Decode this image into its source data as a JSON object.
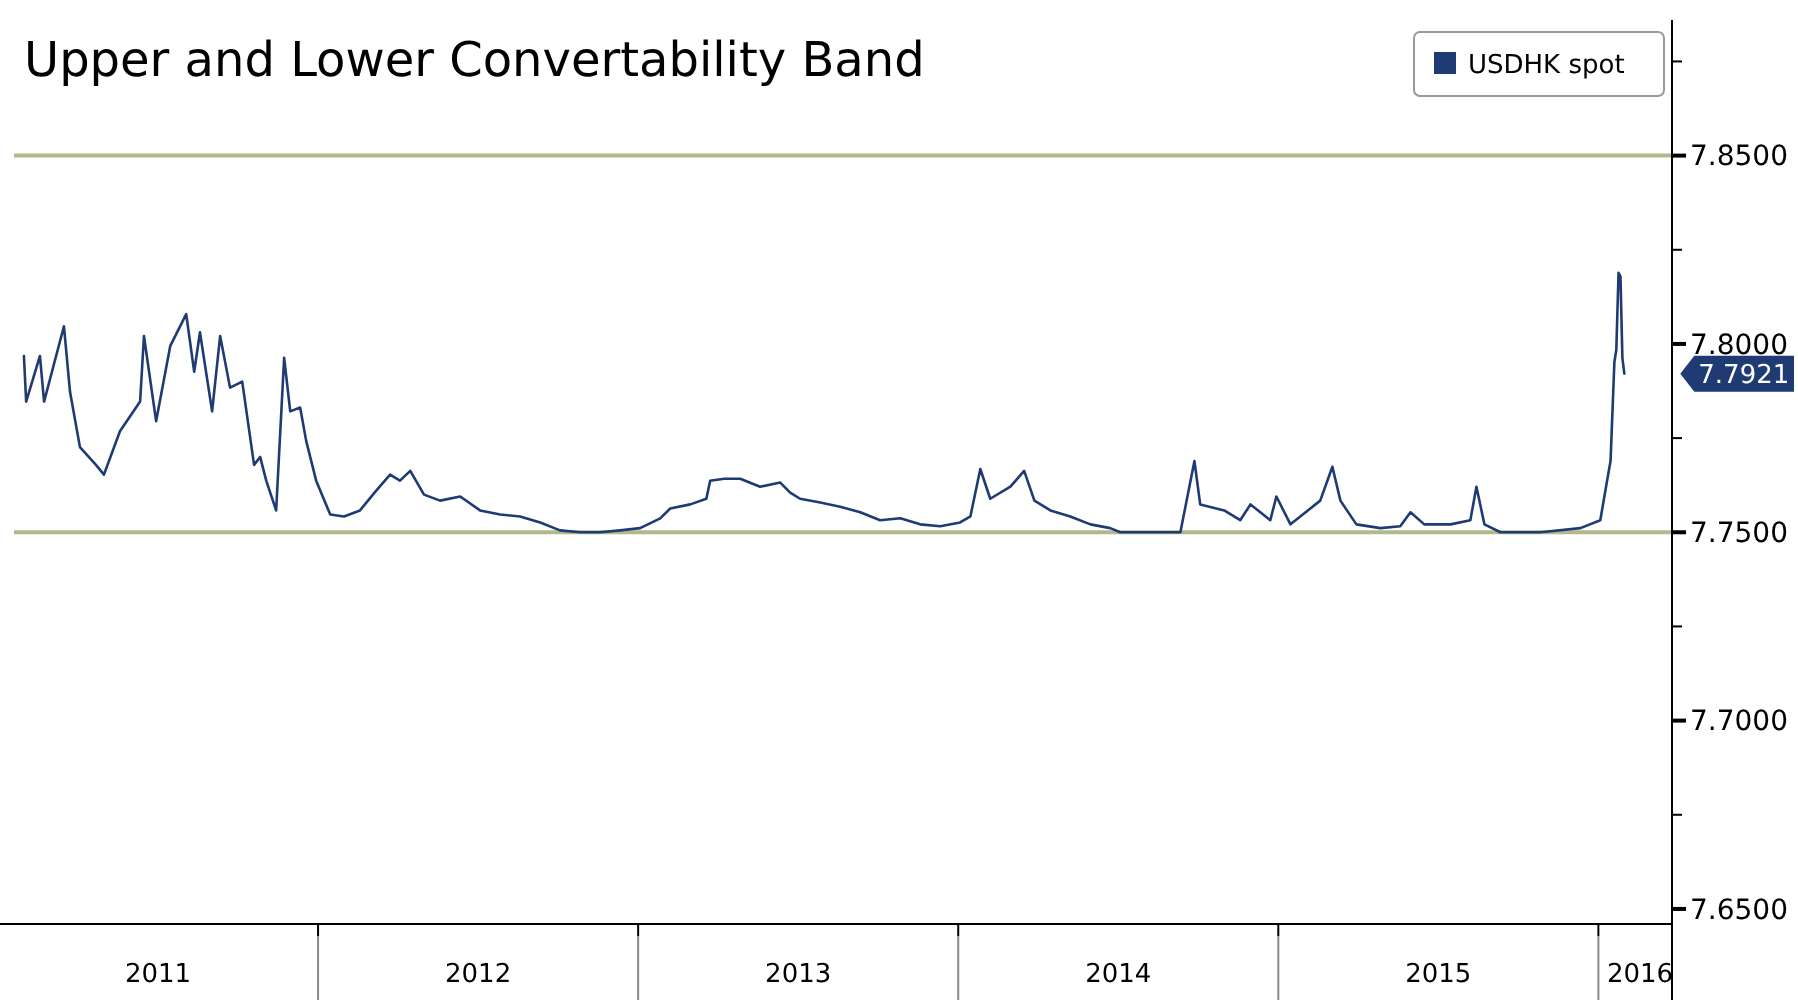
{
  "chart_data": {
    "type": "line",
    "title": "Upper and Lower Convertability Band",
    "x": [
      2011.081,
      2011.088,
      2011.131,
      2011.144,
      2011.206,
      2011.225,
      2011.256,
      2011.306,
      2011.331,
      2011.381,
      2011.444,
      2011.456,
      2011.494,
      2011.538,
      2011.588,
      2011.613,
      2011.631,
      2011.669,
      2011.694,
      2011.725,
      2011.763,
      2011.8,
      2011.819,
      2011.838,
      2011.869,
      2011.894,
      2011.913,
      2011.944,
      2011.963,
      2011.994,
      2012.038,
      2012.081,
      2012.131,
      2012.181,
      2012.225,
      2012.256,
      2012.288,
      2012.331,
      2012.381,
      2012.444,
      2012.506,
      2012.569,
      2012.631,
      2012.694,
      2012.756,
      2012.819,
      2012.85,
      2012.881,
      2012.944,
      2013.006,
      2013.069,
      2013.1,
      2013.163,
      2013.213,
      2013.225,
      2013.269,
      2013.319,
      2013.381,
      2013.444,
      2013.475,
      2013.506,
      2013.569,
      2013.631,
      2013.694,
      2013.756,
      2013.819,
      2013.881,
      2013.944,
      2014.006,
      2014.038,
      2014.069,
      2014.1,
      2014.163,
      2014.206,
      2014.238,
      2014.288,
      2014.35,
      2014.413,
      2014.475,
      2014.506,
      2014.569,
      2014.694,
      2014.738,
      2014.756,
      2014.831,
      2014.881,
      2014.913,
      2014.975,
      2014.994,
      2015.038,
      2015.131,
      2015.169,
      2015.194,
      2015.244,
      2015.319,
      2015.381,
      2015.413,
      2015.456,
      2015.538,
      2015.6,
      2015.619,
      2015.644,
      2015.694,
      2015.819,
      2015.944,
      2016.006,
      2016.025,
      2016.038,
      2016.05,
      2016.056,
      2016.063,
      2016.069,
      2016.075,
      2016.081
    ],
    "series": [
      {
        "name": "USDHK spot",
        "color": "#1f3b73",
        "values": [
          7.7968,
          7.7847,
          7.7968,
          7.7847,
          7.8047,
          7.7873,
          7.7726,
          7.7679,
          7.7653,
          7.7768,
          7.7847,
          7.8021,
          7.7795,
          7.7994,
          7.8079,
          7.7926,
          7.8031,
          7.7821,
          7.8021,
          7.7884,
          7.79,
          7.7679,
          7.77,
          7.7637,
          7.7558,
          7.7963,
          7.7821,
          7.7831,
          7.7742,
          7.7637,
          7.7547,
          7.7542,
          7.7558,
          7.761,
          7.7653,
          7.7637,
          7.7663,
          7.76,
          7.7584,
          7.7595,
          7.7558,
          7.7547,
          7.7542,
          7.7526,
          7.7505,
          7.75,
          7.75,
          7.75,
          7.7505,
          7.7511,
          7.7537,
          7.7563,
          7.7574,
          7.7589,
          7.7637,
          7.7642,
          7.7642,
          7.7621,
          7.7632,
          7.7605,
          7.7589,
          7.7579,
          7.7568,
          7.7553,
          7.7532,
          7.7537,
          7.7521,
          7.7516,
          7.7526,
          7.7542,
          7.7668,
          7.7589,
          7.7621,
          7.7663,
          7.7584,
          7.7558,
          7.7542,
          7.7521,
          7.7511,
          7.75,
          7.75,
          7.75,
          7.7689,
          7.7574,
          7.7558,
          7.7532,
          7.7574,
          7.7532,
          7.7595,
          7.7521,
          7.7584,
          7.7674,
          7.7584,
          7.7521,
          7.7511,
          7.7516,
          7.7553,
          7.7521,
          7.7521,
          7.7532,
          7.7621,
          7.7521,
          7.75,
          7.75,
          7.7511,
          7.7532,
          7.7626,
          7.7689,
          7.7952,
          7.7984,
          7.8189,
          7.8179,
          7.7963,
          7.7921
        ]
      }
    ],
    "xlim": [
      2011.05,
      2016.23
    ],
    "xticks": [
      {
        "value": 2011.5,
        "label": "2011"
      },
      {
        "value": 2012,
        "label": null
      },
      {
        "value": 2012.5,
        "label": "2012"
      },
      {
        "value": 2013,
        "label": null
      },
      {
        "value": 2013.5,
        "label": "2013"
      },
      {
        "value": 2014,
        "label": null
      },
      {
        "value": 2014.5,
        "label": "2014"
      },
      {
        "value": 2015,
        "label": null
      },
      {
        "value": 2015.5,
        "label": "2015"
      },
      {
        "value": 2016,
        "label": null
      },
      {
        "value": 2016.13,
        "label": "2016"
      }
    ],
    "ylim": [
      7.646,
      7.886
    ],
    "yticks": [
      {
        "value": 7.65,
        "label": "7.6500"
      },
      {
        "value": 7.675,
        "label": null
      },
      {
        "value": 7.7,
        "label": "7.7000"
      },
      {
        "value": 7.725,
        "label": null
      },
      {
        "value": 7.75,
        "label": "7.7500"
      },
      {
        "value": 7.775,
        "label": null
      },
      {
        "value": 7.8,
        "label": "7.8000"
      },
      {
        "value": 7.825,
        "label": null
      },
      {
        "value": 7.85,
        "label": "7.8500"
      },
      {
        "value": 7.875,
        "label": null
      }
    ],
    "ref_lines": [
      {
        "axis": "y",
        "value": 7.85,
        "color": "#b3b88a"
      },
      {
        "axis": "y",
        "value": 7.75,
        "color": "#b3b88a"
      }
    ],
    "annotations": [
      {
        "text": "7.7921",
        "x": 2016.081,
        "y": 7.7921
      }
    ],
    "legend": "top right",
    "grid": false
  }
}
